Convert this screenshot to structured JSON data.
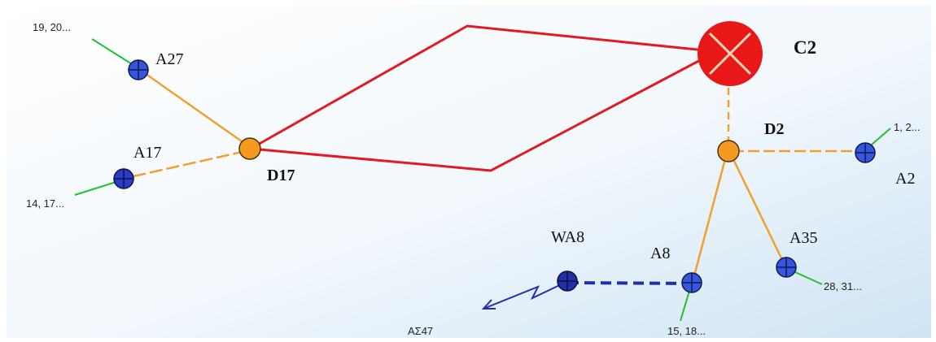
{
  "colors": {
    "trunk": "#e01b24",
    "branch": "#f0a030",
    "lateral": "#22c02a",
    "link": "#1f2fb0",
    "hub_node": "#f59a20",
    "end_node": "#3456e0",
    "cross_node": "#e81818"
  },
  "icons": {
    "hub": "orange-circle",
    "end": "blue-crossed-circle",
    "source": "red-x-circle",
    "lightning": "zigzag-arrow"
  },
  "nodes": {
    "c2": {
      "label": "C2"
    },
    "d2": {
      "label": "D2"
    },
    "d17": {
      "label": "D17"
    },
    "a27": {
      "label": "A27"
    },
    "a17": {
      "label": "A17"
    },
    "a2": {
      "label": "A2"
    },
    "a35": {
      "label": "A35"
    },
    "a8": {
      "label": "A8"
    },
    "wa8": {
      "label": "WA8"
    }
  },
  "endpoints": {
    "a27": "19, 20...",
    "a17": "14, 17...",
    "a2": "1, 2...",
    "a35": "28, 31...",
    "a8": "15, 18..."
  },
  "external": {
    "label": "ΑΣ47"
  }
}
